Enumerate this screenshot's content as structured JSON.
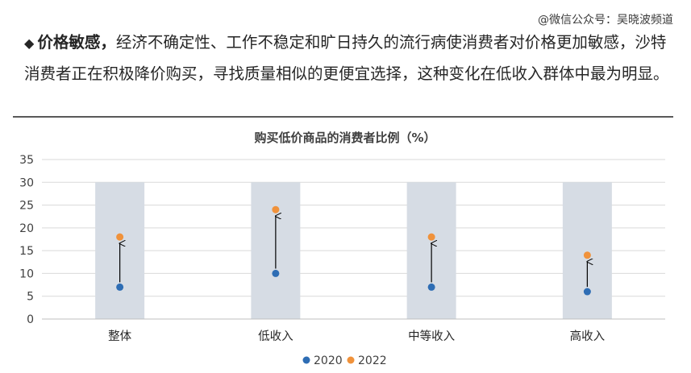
{
  "watermark": "@微信公众号：吴晓波频道",
  "headline": {
    "bullet": "◆",
    "lead": "价格敏感，",
    "text": "经济不确定性、工作不稳定和旷日持久的流行病使消费者对价格更加敏感，沙特消费者正在积极降价购买，寻找质量相似的更便宜选择，这种变化在低收入群体中最为明显。"
  },
  "colors": {
    "series_2020": "#2e6db4",
    "series_2022": "#f0923b",
    "band": "#d6dce4",
    "grid": "#d9d9d9",
    "arrow": "#000000"
  },
  "chart_data": {
    "type": "scatter",
    "title": "购买低价商品的消费者比例（%）",
    "categories": [
      "整体",
      "低收入",
      "中等收入",
      "高收入"
    ],
    "series": [
      {
        "name": "2020",
        "values": [
          7,
          10,
          7,
          6
        ]
      },
      {
        "name": "2022",
        "values": [
          18,
          24,
          18,
          14
        ]
      }
    ],
    "band_value": 30,
    "ylim": [
      0,
      35
    ],
    "yticks": [
      0,
      5,
      10,
      15,
      20,
      25,
      30,
      35
    ],
    "grid": true,
    "legend": "bottom-center",
    "annotations": "arrows from 2020 to 2022 value per category"
  }
}
